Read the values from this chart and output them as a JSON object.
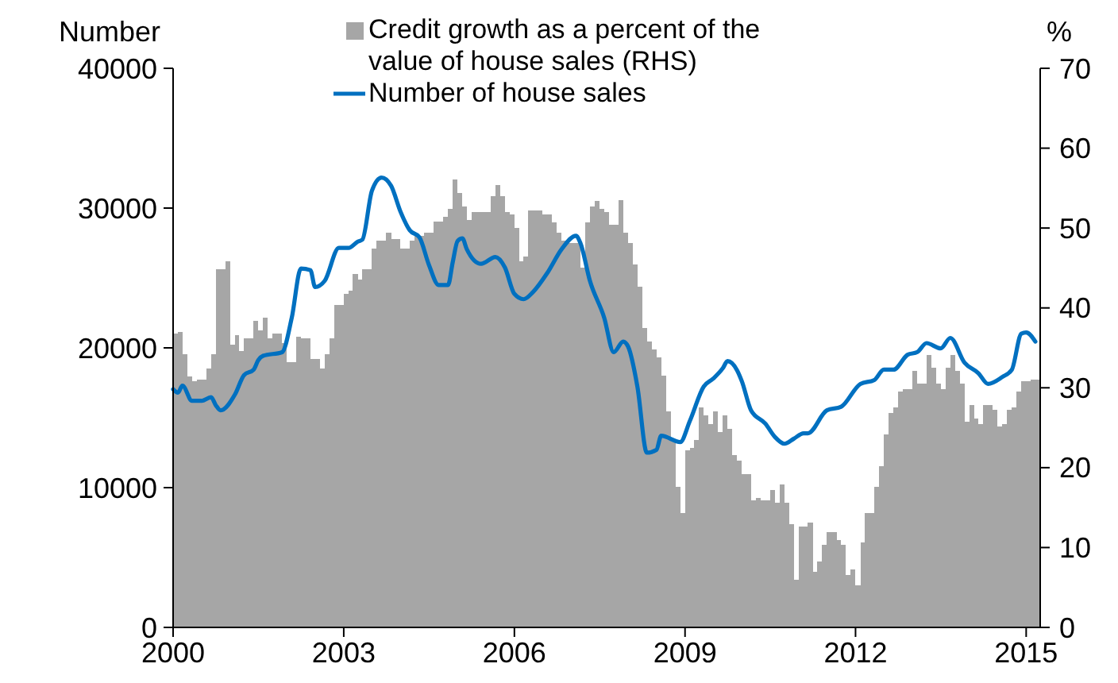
{
  "chart_data": {
    "type": "bar",
    "ylabel": "Number",
    "y2label": "%",
    "legend": "top",
    "grid": false,
    "xlim": [
      "2000-01",
      "2015-04"
    ],
    "xticks": [
      "2000",
      "2003",
      "2006",
      "2009",
      "2012",
      "2015"
    ],
    "ylim": [
      0,
      40000
    ],
    "yticks": [
      0,
      10000,
      20000,
      30000,
      40000
    ],
    "y2lim": [
      0,
      70
    ],
    "y2ticks": [
      0,
      10,
      20,
      30,
      40,
      50,
      60,
      70
    ],
    "series": [
      {
        "name": "Credit growth as a percent of the value of house sales (RHS)",
        "axis": "y2",
        "color": "#a6a6a6",
        "x": [
          "2000-01",
          "2000-02",
          "2000-03",
          "2000-04",
          "2000-05",
          "2000-06",
          "2000-07",
          "2000-08",
          "2000-09",
          "2000-10",
          "2000-11",
          "2000-12",
          "2001-01",
          "2001-02",
          "2001-03",
          "2001-04",
          "2001-05",
          "2001-06",
          "2001-07",
          "2001-08",
          "2001-09",
          "2001-10",
          "2001-11",
          "2001-12",
          "2002-01",
          "2002-02",
          "2002-03",
          "2002-04",
          "2002-05",
          "2002-06",
          "2002-07",
          "2002-08",
          "2002-09",
          "2002-10",
          "2002-11",
          "2002-12",
          "2003-01",
          "2003-02",
          "2003-03",
          "2003-04",
          "2003-05",
          "2003-06",
          "2003-07",
          "2003-08",
          "2003-09",
          "2003-10",
          "2003-11",
          "2003-12",
          "2004-01",
          "2004-02",
          "2004-03",
          "2004-04",
          "2004-05",
          "2004-06",
          "2004-07",
          "2004-08",
          "2004-09",
          "2004-10",
          "2004-11",
          "2004-12",
          "2005-01",
          "2005-02",
          "2005-03",
          "2005-04",
          "2005-05",
          "2005-06",
          "2005-07",
          "2005-08",
          "2005-09",
          "2005-10",
          "2005-11",
          "2005-12",
          "2006-01",
          "2006-02",
          "2006-03",
          "2006-04",
          "2006-05",
          "2006-06",
          "2006-07",
          "2006-08",
          "2006-09",
          "2006-10",
          "2006-11",
          "2006-12",
          "2007-01",
          "2007-02",
          "2007-03",
          "2007-04",
          "2007-05",
          "2007-06",
          "2007-07",
          "2007-08",
          "2007-09",
          "2007-10",
          "2007-11",
          "2007-12",
          "2008-01",
          "2008-02",
          "2008-03",
          "2008-04",
          "2008-05",
          "2008-06",
          "2008-07",
          "2008-08",
          "2008-09",
          "2008-10",
          "2008-11",
          "2008-12",
          "2009-01",
          "2009-02",
          "2009-03",
          "2009-04",
          "2009-05",
          "2009-06",
          "2009-07",
          "2009-08",
          "2009-09",
          "2009-10",
          "2009-11",
          "2009-12",
          "2010-01",
          "2010-02",
          "2010-03",
          "2010-04",
          "2010-05",
          "2010-06",
          "2010-07",
          "2010-08",
          "2010-09",
          "2010-10",
          "2010-11",
          "2010-12",
          "2011-01",
          "2011-02",
          "2011-03",
          "2011-04",
          "2011-05",
          "2011-06",
          "2011-07",
          "2011-08",
          "2011-09",
          "2011-10",
          "2011-11",
          "2011-12",
          "2012-01",
          "2012-02",
          "2012-03",
          "2012-04",
          "2012-05",
          "2012-06",
          "2012-07",
          "2012-08",
          "2012-09",
          "2012-10",
          "2012-11",
          "2012-12",
          "2013-01",
          "2013-02",
          "2013-03",
          "2013-04",
          "2013-05",
          "2013-06",
          "2013-07",
          "2013-08",
          "2013-09",
          "2013-10",
          "2013-11",
          "2013-12",
          "2014-01",
          "2014-02",
          "2014-03",
          "2014-04",
          "2014-05",
          "2014-06",
          "2014-07",
          "2014-08",
          "2014-09",
          "2014-10",
          "2014-11",
          "2014-12",
          "2015-01",
          "2015-02",
          "2015-03"
        ],
        "values": [
          36.8,
          37,
          34.2,
          31.4,
          30.8,
          31,
          31,
          32.4,
          34.2,
          44.8,
          44.8,
          45.8,
          35.4,
          36.6,
          34.6,
          36.2,
          36.2,
          38.4,
          37.2,
          38.8,
          36.2,
          36.8,
          36.8,
          35.6,
          33.2,
          33.2,
          36.4,
          36.2,
          36.2,
          33.6,
          33.6,
          32.4,
          34.2,
          36.2,
          40.4,
          40.4,
          41.8,
          42.2,
          44.2,
          43.6,
          44.8,
          44.8,
          47.4,
          48.4,
          48.4,
          49.4,
          48.6,
          48.6,
          47.4,
          47.4,
          48.4,
          49,
          49,
          49.4,
          49.4,
          50.8,
          50.8,
          51.4,
          52.4,
          56.1,
          54.4,
          52.7,
          51,
          52,
          52,
          52,
          52,
          54,
          55.4,
          54,
          52,
          51.7,
          50,
          45.8,
          46.4,
          52.2,
          52.2,
          52.2,
          51.7,
          51.7,
          50.7,
          49.4,
          48.4,
          48.1,
          48.1,
          48.1,
          45,
          50.7,
          52.7,
          53.4,
          52.4,
          52,
          50.4,
          50.4,
          53.5,
          49.4,
          48.1,
          45.4,
          42.7,
          37.5,
          35.8,
          34.8,
          33.8,
          31.5,
          27,
          23.5,
          17.6,
          14.3,
          22.2,
          22.5,
          23.5,
          27.5,
          26.5,
          25.5,
          27,
          24.5,
          26.5,
          24.9,
          21.6,
          20.9,
          19.2,
          19.2,
          15.9,
          16.2,
          15.9,
          15.9,
          17.2,
          15.6,
          17.9,
          15.6,
          12.9,
          6.0,
          12.6,
          12.6,
          13.1,
          7.0,
          8.3,
          10.3,
          11.9,
          11.9,
          10.9,
          10.3,
          6.6,
          7.3,
          5.3,
          10.6,
          14.3,
          14.3,
          17.6,
          20.2,
          24.2,
          26.8,
          27.5,
          29.5,
          29.8,
          29.8,
          32.1,
          30.5,
          30.5,
          34.1,
          32.5,
          30.5,
          29.8,
          32.5,
          34.1,
          32.1,
          30.5,
          25.8,
          27.8,
          26.2,
          25.5,
          27.8,
          27.8,
          27.2,
          25.2,
          25.5,
          27.2,
          27.5,
          29.5,
          30.8,
          30.8,
          31,
          31
        ]
      },
      {
        "name": "Number of house sales",
        "type": "line",
        "color": "#0070c0",
        "x": [
          "2000-01",
          "2000-02",
          "2000-03",
          "2000-05",
          "2000-07",
          "2000-09",
          "2000-10",
          "2000-11",
          "2001-02",
          "2001-04",
          "2001-06",
          "2001-07",
          "2001-08",
          "2001-12",
          "2002-02",
          "2002-04",
          "2002-06",
          "2002-07",
          "2002-09",
          "2002-12",
          "2003-02",
          "2003-04",
          "2003-05",
          "2003-07",
          "2003-09",
          "2003-11",
          "2004-01",
          "2004-03",
          "2004-05",
          "2004-07",
          "2004-09",
          "2004-11",
          "2004-12",
          "2005-01",
          "2005-02",
          "2005-03",
          "2005-06",
          "2005-09",
          "2005-11",
          "2006-01",
          "2006-03",
          "2006-05",
          "2006-08",
          "2006-11",
          "2007-02",
          "2007-03",
          "2007-05",
          "2007-08",
          "2007-10",
          "2007-12",
          "2008-01",
          "2008-03",
          "2008-05",
          "2008-07",
          "2008-08",
          "2008-12",
          "2009-02",
          "2009-05",
          "2009-07",
          "2009-09",
          "2009-10",
          "2009-12",
          "2010-01",
          "2010-03",
          "2010-06",
          "2010-08",
          "2010-10",
          "2010-12",
          "2011-02",
          "2011-03",
          "2011-07",
          "2011-10",
          "2012-02",
          "2012-05",
          "2012-07",
          "2012-09",
          "2012-12",
          "2013-02",
          "2013-04",
          "2013-07",
          "2013-09",
          "2013-12",
          "2014-03",
          "2014-05",
          "2014-08",
          "2014-10",
          "2014-12",
          "2015-01",
          "2015-03"
        ],
        "values": [
          17040,
          16800,
          17300,
          16210,
          16210,
          16470,
          15900,
          15530,
          16660,
          18060,
          18440,
          19120,
          19430,
          19690,
          22150,
          25670,
          25560,
          24350,
          24800,
          27150,
          27150,
          27600,
          27750,
          31240,
          32180,
          31600,
          29730,
          28400,
          27910,
          25940,
          24500,
          24500,
          26130,
          27640,
          27830,
          27070,
          26010,
          26500,
          25750,
          23860,
          23480,
          24000,
          25370,
          27070,
          28020,
          27500,
          24800,
          22150,
          19690,
          20450,
          20100,
          17230,
          12500,
          12700,
          13710,
          13260,
          14770,
          17230,
          17800,
          18550,
          19050,
          18400,
          17610,
          15530,
          14580,
          13630,
          13140,
          13500,
          13890,
          13890,
          15530,
          15790,
          17420,
          17700,
          18440,
          18440,
          19510,
          19700,
          20340,
          19960,
          20710,
          18940,
          18180,
          17420,
          17920,
          18440,
          21020,
          21100,
          20450
        ]
      }
    ]
  }
}
